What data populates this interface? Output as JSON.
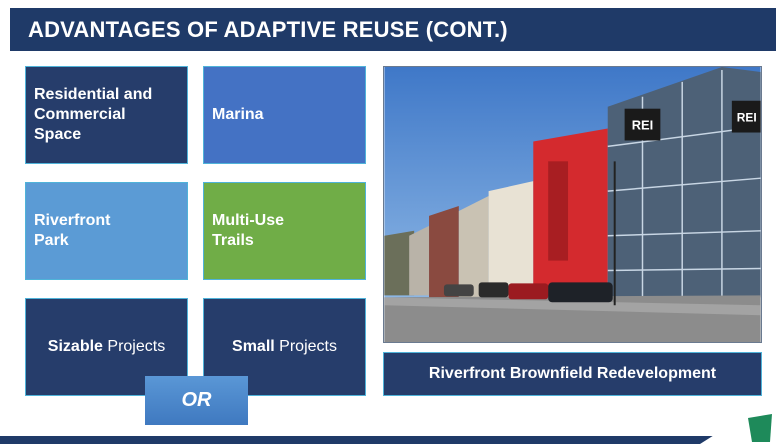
{
  "header": {
    "title": "ADVANTAGES OF ADAPTIVE REUSE (CONT.)"
  },
  "tiles": [
    {
      "lines": [
        "Residential and",
        "Commercial",
        "Space"
      ]
    },
    {
      "lines": [
        "Marina"
      ]
    },
    {
      "lines": [
        "Riverfront",
        "Park"
      ]
    },
    {
      "lines": [
        "Multi-Use",
        "Trails"
      ]
    }
  ],
  "projects": [
    {
      "bold": "Sizable",
      "rest": "Projects"
    },
    {
      "bold": "Small",
      "rest": "Projects"
    }
  ],
  "or": "OR",
  "photo": {
    "signs": [
      "REI",
      "REI"
    ]
  },
  "caption": "Riverfront Brownfield Redevelopment"
}
